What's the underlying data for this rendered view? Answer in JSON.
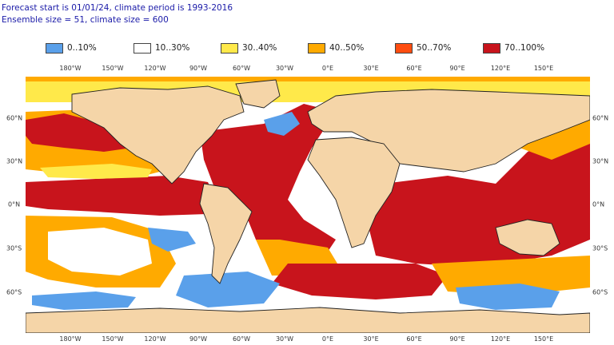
{
  "header": {
    "line1": "Forecast start is 01/01/24, climate period is 1993-2016",
    "line2": "Ensemble size = 51, climate size = 600"
  },
  "legend": [
    {
      "label": "0..10%",
      "color": "#5aa0ea"
    },
    {
      "label": "10..30%",
      "color": "#ffffff"
    },
    {
      "label": "30..40%",
      "color": "#ffe94a"
    },
    {
      "label": "40..50%",
      "color": "#ffaa00"
    },
    {
      "label": "50..70%",
      "color": "#ff4d10"
    },
    {
      "label": "70..100%",
      "color": "#c8141c"
    }
  ],
  "map": {
    "land_color": "#f5d5a8",
    "x_ticks": [
      "180°W",
      "150°W",
      "120°W",
      "90°W",
      "60°W",
      "30°W",
      "0°E",
      "30°E",
      "60°E",
      "90°E",
      "120°E",
      "150°E"
    ],
    "y_ticks": [
      "60°N",
      "30°N",
      "0°N",
      "30°S",
      "60°S"
    ]
  }
}
